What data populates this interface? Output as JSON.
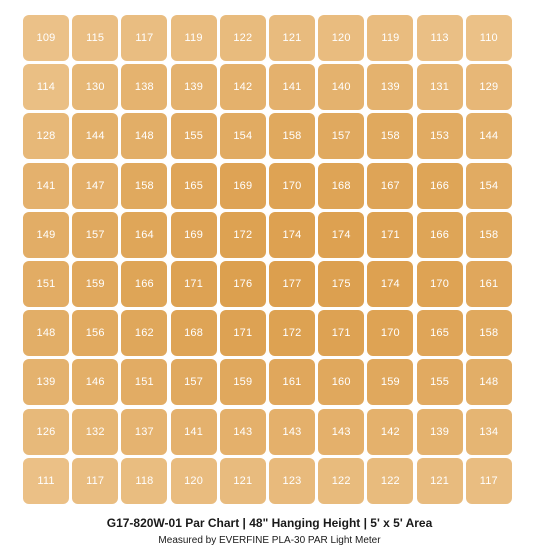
{
  "chart_data": {
    "type": "heatmap",
    "title": "G17-820W-01 Par Chart | 48\" Hanging Height |  5' x 5' Area",
    "subtitle": "Measured by EVERFINE PLA-30 PAR Light Meter",
    "rows": 10,
    "cols": 10,
    "values": [
      [
        109,
        115,
        117,
        119,
        122,
        121,
        120,
        119,
        113,
        110
      ],
      [
        114,
        130,
        138,
        139,
        142,
        141,
        140,
        139,
        131,
        129
      ],
      [
        128,
        144,
        148,
        155,
        154,
        158,
        157,
        158,
        153,
        144
      ],
      [
        141,
        147,
        158,
        165,
        169,
        170,
        168,
        167,
        166,
        154
      ],
      [
        149,
        157,
        164,
        169,
        172,
        174,
        174,
        171,
        166,
        158
      ],
      [
        151,
        159,
        166,
        171,
        176,
        177,
        175,
        174,
        170,
        161
      ],
      [
        148,
        156,
        162,
        168,
        171,
        172,
        171,
        170,
        165,
        158
      ],
      [
        139,
        146,
        151,
        157,
        159,
        161,
        160,
        159,
        155,
        148
      ],
      [
        126,
        132,
        137,
        141,
        143,
        143,
        143,
        142,
        139,
        134
      ],
      [
        111,
        117,
        118,
        120,
        121,
        123,
        122,
        122,
        121,
        117
      ]
    ],
    "color_low": "#ebc188",
    "color_high": "#dc9f4e",
    "text_color": "#ffffff"
  }
}
